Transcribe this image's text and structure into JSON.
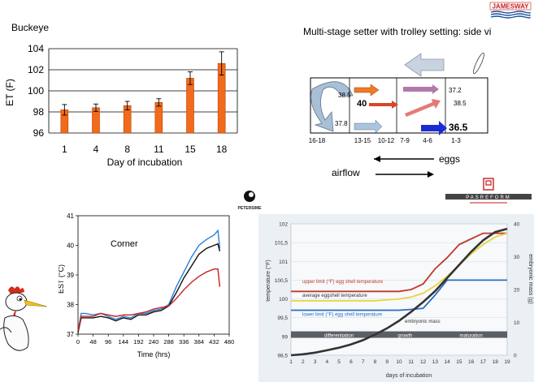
{
  "logos": {
    "jamesway": "JAMESWAY",
    "petersime": "PETERSIME",
    "pasreform": "PASREFORM"
  },
  "chart_data": [
    {
      "type": "bar",
      "title": "Buckeye",
      "xlabel": "Day of incubation",
      "ylabel": "ET (F)",
      "categories": [
        "1",
        "4",
        "8",
        "11",
        "15",
        "18"
      ],
      "values": [
        98.2,
        98.4,
        98.6,
        98.9,
        101.2,
        102.6
      ],
      "errors": [
        0.5,
        0.35,
        0.4,
        0.35,
        0.6,
        1.1
      ],
      "ylim": [
        96,
        104
      ],
      "yticks": [
        96,
        98,
        100,
        102,
        104
      ],
      "grid": true,
      "color": "#f26a1b"
    },
    {
      "type": "line",
      "title": "Corner",
      "xlabel": "Time (hrs)",
      "ylabel": "EST (°C)",
      "xlim": [
        0,
        480
      ],
      "ylim": [
        37,
        41
      ],
      "xticks": [
        0,
        48,
        96,
        144,
        192,
        240,
        288,
        336,
        384,
        432,
        480
      ],
      "yticks": [
        37,
        38,
        39,
        40,
        41
      ],
      "series": [
        {
          "color": "#2a7fd4",
          "x": [
            0,
            10,
            24,
            48,
            72,
            96,
            120,
            144,
            168,
            192,
            216,
            240,
            264,
            288,
            312,
            336,
            360,
            384,
            408,
            432,
            444,
            450
          ],
          "y": [
            37.1,
            37.7,
            37.7,
            37.65,
            37.7,
            37.6,
            37.5,
            37.6,
            37.55,
            37.7,
            37.7,
            37.8,
            37.85,
            38.0,
            38.6,
            39.1,
            39.6,
            40.0,
            40.2,
            40.35,
            40.5,
            39.9
          ]
        },
        {
          "color": "#111111",
          "x": [
            0,
            10,
            24,
            48,
            72,
            96,
            120,
            144,
            168,
            192,
            216,
            240,
            264,
            288,
            312,
            336,
            360,
            384,
            408,
            432,
            444,
            450
          ],
          "y": [
            37.05,
            37.55,
            37.55,
            37.55,
            37.6,
            37.55,
            37.45,
            37.55,
            37.5,
            37.65,
            37.65,
            37.75,
            37.8,
            37.95,
            38.4,
            38.9,
            39.3,
            39.7,
            39.9,
            40.0,
            40.05,
            39.8
          ]
        },
        {
          "color": "#c81e1e",
          "x": [
            0,
            10,
            24,
            48,
            72,
            96,
            120,
            144,
            168,
            192,
            216,
            240,
            264,
            288,
            312,
            336,
            360,
            384,
            408,
            432,
            444,
            450
          ],
          "y": [
            37.1,
            37.6,
            37.6,
            37.6,
            37.7,
            37.65,
            37.6,
            37.65,
            37.65,
            37.7,
            37.75,
            37.85,
            37.9,
            37.95,
            38.2,
            38.5,
            38.75,
            38.95,
            39.1,
            39.2,
            39.2,
            38.6
          ]
        }
      ]
    },
    {
      "type": "line",
      "xlabel": "days of incubation",
      "ylabel": "temperature (°F)",
      "y2label": "embryonic mass (g)",
      "xlim": [
        1,
        19
      ],
      "xticks": [
        "1",
        "2",
        "3",
        "4",
        "5",
        "6",
        "7",
        "8",
        "9",
        "10",
        "11",
        "12",
        "13",
        "14",
        "15",
        "16",
        "17",
        "18",
        "19"
      ],
      "ylim": [
        98.5,
        102
      ],
      "yticks": [
        "98,5",
        "99",
        "99,5",
        "100",
        "100,5",
        "101",
        "101,5",
        "102"
      ],
      "y2lim": [
        0,
        40
      ],
      "y2ticks": [
        "0",
        "10",
        "20",
        "30",
        "40"
      ],
      "phases": [
        "differentiation",
        "growth",
        "maturation"
      ],
      "series": [
        {
          "name": "upper limit (°F) egg shell temperature",
          "color": "#c0392b",
          "x": [
            1,
            2,
            4,
            6,
            8,
            10,
            11,
            12,
            13,
            14,
            15,
            16,
            17,
            18,
            19
          ],
          "y": [
            100.2,
            100.2,
            100.2,
            100.2,
            100.2,
            100.2,
            100.25,
            100.4,
            100.8,
            101.1,
            101.45,
            101.6,
            101.75,
            101.75,
            101.75
          ]
        },
        {
          "name": "average eggshell temperature",
          "color": "#e8d53a",
          "x": [
            1,
            2,
            4,
            6,
            8,
            10,
            11,
            12,
            13,
            14,
            15,
            16,
            17,
            18,
            19
          ],
          "y": [
            99.95,
            99.95,
            99.95,
            99.95,
            99.95,
            100.0,
            100.05,
            100.15,
            100.35,
            100.6,
            100.9,
            101.2,
            101.45,
            101.65,
            101.75
          ]
        },
        {
          "name": "lower limit (°F) egg shell temperature",
          "color": "#2a6ec4",
          "x": [
            1,
            2,
            4,
            6,
            8,
            10,
            11,
            12,
            13,
            14,
            15,
            16,
            17,
            18,
            19
          ],
          "y": [
            99.7,
            99.7,
            99.7,
            99.7,
            99.7,
            99.7,
            99.72,
            99.75,
            100.1,
            100.5,
            100.5,
            100.5,
            100.5,
            100.5,
            100.5
          ]
        },
        {
          "name": "embryonic mass",
          "color": "#333333",
          "axis": "right",
          "x": [
            1,
            2,
            3,
            4,
            5,
            6,
            7,
            8,
            9,
            10,
            11,
            12,
            13,
            14,
            15,
            16,
            17,
            18,
            19
          ],
          "y": [
            0,
            0.3,
            0.8,
            1.5,
            2.3,
            3.3,
            4.6,
            6.3,
            8.2,
            10.5,
            13.2,
            16.2,
            19.5,
            23.5,
            27.5,
            31.5,
            35.0,
            37.5,
            38.5
          ]
        }
      ]
    },
    {
      "type": "diagram",
      "title": "Multi-stage setter with trolley setting: side view",
      "values": [
        "38.5",
        "37.8",
        "40",
        "37.2",
        "38.5",
        "36.5"
      ],
      "categories": [
        "16-18",
        "13-15",
        "10-12",
        "7-9",
        "4-6",
        "1-3"
      ],
      "legend": [
        "eggs",
        "airflow"
      ]
    }
  ]
}
